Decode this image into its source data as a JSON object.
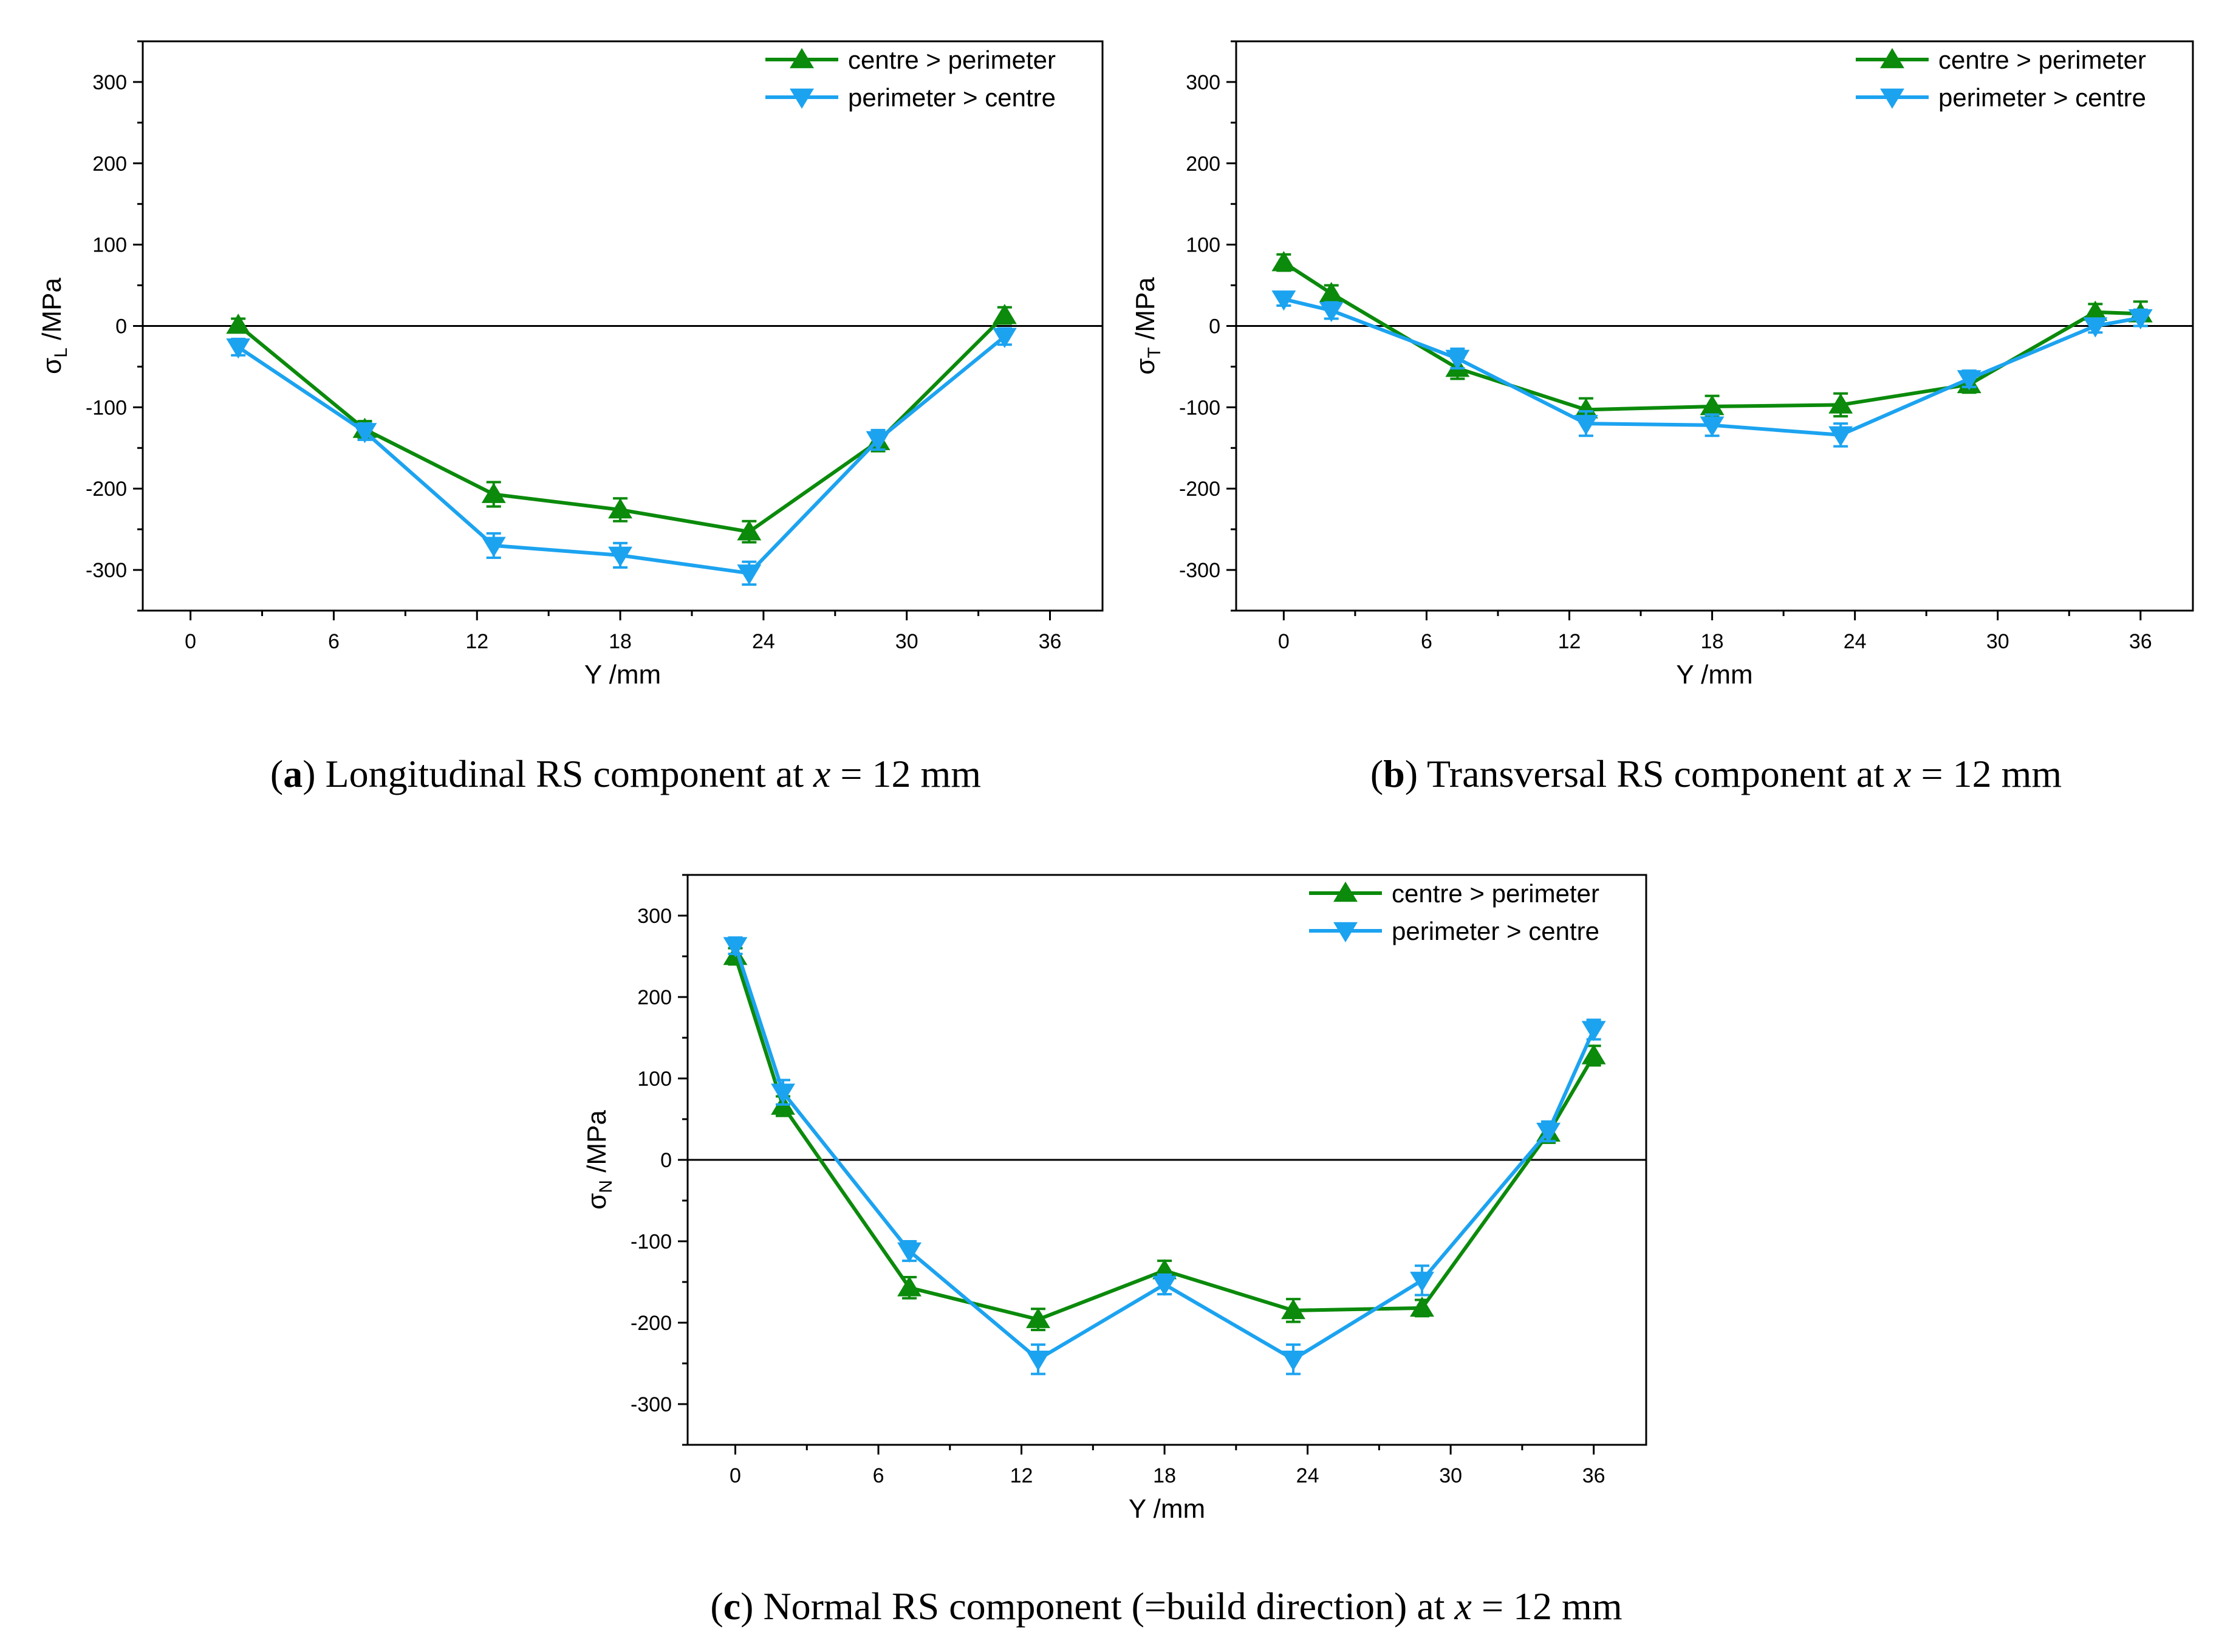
{
  "colors": {
    "centre_to_perimeter": "#0b8a0b",
    "perimeter_to_centre": "#1ca3f0",
    "axis": "#000000"
  },
  "series_labels": [
    "centre > perimeter",
    "perimeter > centre"
  ],
  "x_ticks": [
    0,
    6,
    12,
    18,
    24,
    30,
    36
  ],
  "y_ticks": [
    300,
    200,
    100,
    0,
    -100,
    -200,
    -300
  ],
  "chart_data": [
    {
      "type": "line",
      "panel": "a",
      "caption_letter": "a",
      "caption_text": "Longitudinal RS component at",
      "caption_var": "x",
      "caption_eq": "= 12",
      "caption_unit": "mm",
      "xlabel": "Y /mm",
      "ylabel_main": "σ",
      "ylabel_sub": "L",
      "ylabel_unit": "/MPa",
      "xlim": [
        -2,
        38.2
      ],
      "ylim": [
        -350,
        350
      ],
      "legend": "top-right",
      "series": [
        {
          "name": "centre > perimeter",
          "marker": "triangle-up",
          "x": [
            2,
            7.3,
            12.7,
            18,
            23.4,
            28.8,
            34.1
          ],
          "y": [
            1,
            -127,
            -207,
            -226,
            -253,
            -142,
            13
          ],
          "err": [
            8,
            10,
            15,
            14,
            13,
            12,
            10
          ]
        },
        {
          "name": "perimeter > centre",
          "marker": "triangle-down",
          "x": [
            2,
            7.3,
            12.7,
            18,
            23.4,
            28.8,
            34.1
          ],
          "y": [
            -26,
            -130,
            -270,
            -282,
            -304,
            -140,
            -13
          ],
          "err": [
            10,
            10,
            15,
            15,
            14,
            12,
            10
          ]
        }
      ]
    },
    {
      "type": "line",
      "panel": "b",
      "caption_letter": "b",
      "caption_text": "Transversal RS component at",
      "caption_var": "x",
      "caption_eq": "= 12",
      "caption_unit": "mm",
      "xlabel": "Y /mm",
      "ylabel_main": "σ",
      "ylabel_sub": "T",
      "ylabel_unit": "/MPa",
      "xlim": [
        -2,
        38.2
      ],
      "ylim": [
        -350,
        350
      ],
      "legend": "top-right",
      "series": [
        {
          "name": "centre > perimeter",
          "marker": "triangle-up",
          "x": [
            0,
            2,
            7.3,
            12.7,
            18,
            23.4,
            28.8,
            34.1,
            36
          ],
          "y": [
            78,
            40,
            -52,
            -103,
            -99,
            -97,
            -72,
            17,
            15
          ],
          "err": [
            10,
            10,
            13,
            14,
            13,
            14,
            10,
            10,
            15
          ]
        },
        {
          "name": "perimeter > centre",
          "marker": "triangle-down",
          "x": [
            0,
            2,
            7.3,
            12.7,
            18,
            23.4,
            28.8,
            34.1,
            36
          ],
          "y": [
            33,
            19,
            -40,
            -120,
            -122,
            -134,
            -65,
            0,
            10
          ],
          "err": [
            8,
            10,
            12,
            15,
            13,
            14,
            10,
            8,
            10
          ]
        }
      ]
    },
    {
      "type": "line",
      "panel": "c",
      "caption_letter": "c",
      "caption_text": "Normal RS component (=build direction) at",
      "caption_var": "x",
      "caption_eq": "= 12",
      "caption_unit": "mm",
      "xlabel": "Y /mm",
      "ylabel_main": "σ",
      "ylabel_sub": "N",
      "ylabel_unit": "/MPa",
      "xlim": [
        -2,
        38.2
      ],
      "ylim": [
        -350,
        350
      ],
      "legend": "top-right",
      "series": [
        {
          "name": "centre > perimeter",
          "marker": "triangle-up",
          "x": [
            0,
            2,
            7.3,
            12.7,
            18,
            23.4,
            28.8,
            34.1,
            36
          ],
          "y": [
            250,
            66,
            -157,
            -196,
            -136,
            -185,
            -182,
            33,
            128
          ],
          "err": [
            10,
            12,
            13,
            13,
            12,
            14,
            10,
            12,
            12
          ]
        },
        {
          "name": "perimeter > centre",
          "marker": "triangle-down",
          "x": [
            0,
            2,
            7.3,
            12.7,
            18,
            23.4,
            28.8,
            34.1,
            36
          ],
          "y": [
            263,
            83,
            -112,
            -245,
            -153,
            -245,
            -148,
            35,
            160
          ],
          "err": [
            10,
            15,
            12,
            18,
            12,
            18,
            18,
            12,
            12
          ]
        }
      ]
    }
  ]
}
